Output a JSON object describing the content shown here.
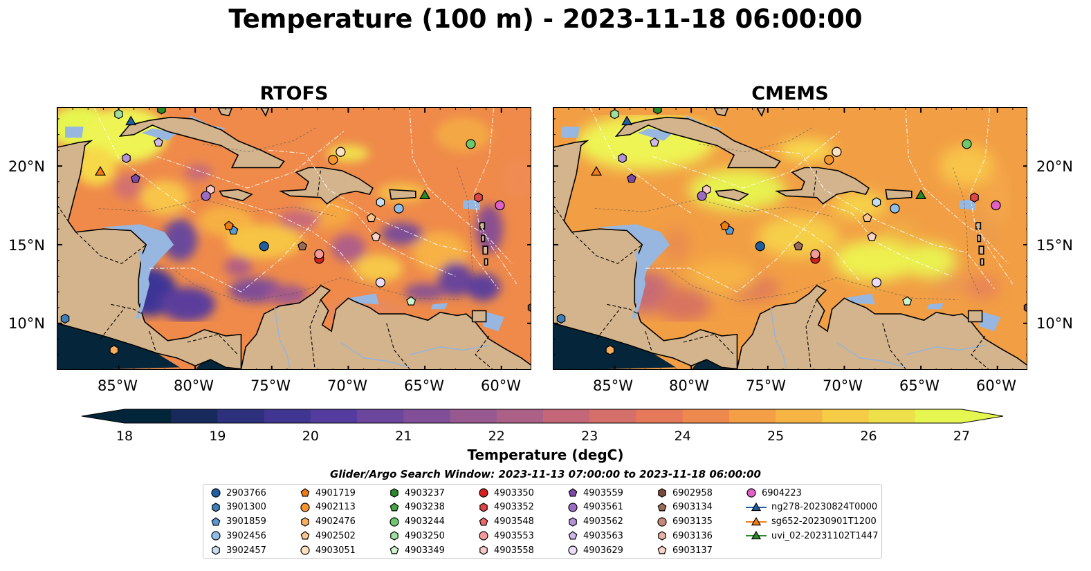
{
  "title": "Temperature (100 m) - 2023-11-18 06:00:00",
  "panels": [
    {
      "title": "RTOFS"
    },
    {
      "title": "CMEMS"
    }
  ],
  "lat_ticks": [
    "20°N",
    "15°N",
    "10°N"
  ],
  "lon_ticks": [
    "85°W",
    "80°W",
    "75°W",
    "70°W",
    "65°W",
    "60°W"
  ],
  "colorbar": {
    "label": "Temperature (degC)",
    "ticks": [
      "18",
      "19",
      "20",
      "21",
      "22",
      "23",
      "24",
      "25",
      "26",
      "27"
    ],
    "range": [
      18,
      27
    ],
    "colors": [
      "#03253a",
      "#2b2f7a",
      "#4f3aa0",
      "#7a4c9a",
      "#a45d8c",
      "#cc6a73",
      "#eb7c55",
      "#f5a343",
      "#f6cd45",
      "#e6f650"
    ]
  },
  "legend": {
    "title": "Glider/Argo Search Window: 2023-11-13 07:00:00 to 2023-11-18 06:00:00",
    "items": [
      {
        "label": "2903766",
        "marker": "circle",
        "color": "#1f5fa0"
      },
      {
        "label": "3901300",
        "marker": "hexagon",
        "color": "#3f7fb8"
      },
      {
        "label": "3901859",
        "marker": "pentagon",
        "color": "#5a9bd3"
      },
      {
        "label": "3902456",
        "marker": "circle",
        "color": "#8fbfe8"
      },
      {
        "label": "3902457",
        "marker": "hexagon",
        "color": "#c6def2"
      },
      {
        "label": "4901719",
        "marker": "pentagon",
        "color": "#f07d14"
      },
      {
        "label": "4902113",
        "marker": "circle",
        "color": "#f6952e"
      },
      {
        "label": "4902476",
        "marker": "hexagon",
        "color": "#f8ae5e"
      },
      {
        "label": "4902502",
        "marker": "pentagon",
        "color": "#fbc68e"
      },
      {
        "label": "4903051",
        "marker": "circle",
        "color": "#fde0be"
      },
      {
        "label": "4903237",
        "marker": "hexagon",
        "color": "#2a8a2a"
      },
      {
        "label": "4903238",
        "marker": "pentagon",
        "color": "#45a845"
      },
      {
        "label": "4903244",
        "marker": "circle",
        "color": "#6cc86c"
      },
      {
        "label": "4903250",
        "marker": "hexagon",
        "color": "#9ee09e"
      },
      {
        "label": "4903349",
        "marker": "pentagon",
        "color": "#cdf5cd"
      },
      {
        "label": "4903350",
        "marker": "circle",
        "color": "#d62020"
      },
      {
        "label": "4903352",
        "marker": "hexagon",
        "color": "#e04646"
      },
      {
        "label": "4903548",
        "marker": "pentagon",
        "color": "#ea6a6a"
      },
      {
        "label": "4903553",
        "marker": "circle",
        "color": "#f29a9a"
      },
      {
        "label": "4903558",
        "marker": "hexagon",
        "color": "#fac8c8"
      },
      {
        "label": "4903559",
        "marker": "pentagon",
        "color": "#7d4aa8"
      },
      {
        "label": "4903561",
        "marker": "circle",
        "color": "#9a6cc4"
      },
      {
        "label": "4903562",
        "marker": "hexagon",
        "color": "#b591d8"
      },
      {
        "label": "4903563",
        "marker": "pentagon",
        "color": "#d1b8ec"
      },
      {
        "label": "4903629",
        "marker": "circle",
        "color": "#eadcfa"
      },
      {
        "label": "6902958",
        "marker": "hexagon",
        "color": "#7a4a3a"
      },
      {
        "label": "6903134",
        "marker": "pentagon",
        "color": "#9a6a58"
      },
      {
        "label": "6903135",
        "marker": "circle",
        "color": "#c48a7a"
      },
      {
        "label": "6903136",
        "marker": "hexagon",
        "color": "#e6b0a2"
      },
      {
        "label": "6903137",
        "marker": "pentagon",
        "color": "#f8d4c8"
      },
      {
        "label": "6904223",
        "marker": "circle",
        "color": "#e060c8"
      },
      {
        "label": "ng278-20230824T0000",
        "marker": "triangle-line",
        "color": "#1f5fa0"
      },
      {
        "label": "sg652-20230901T1200",
        "marker": "triangle-line",
        "color": "#f07d14"
      },
      {
        "label": "uvi_02-20231102T1447",
        "marker": "triangle-line",
        "color": "#2a8a2a"
      }
    ]
  },
  "observations": [
    {
      "id": "2903766",
      "lon": -75.5,
      "lat": 14.9
    },
    {
      "id": "3901300",
      "lon": -88.5,
      "lat": 10.3
    },
    {
      "id": "3901859",
      "lon": -77.5,
      "lat": 15.9
    },
    {
      "id": "3902456",
      "lon": -66.7,
      "lat": 17.3
    },
    {
      "id": "3902457",
      "lon": -67.9,
      "lat": 17.7
    },
    {
      "id": "4901719",
      "lon": -77.8,
      "lat": 16.2
    },
    {
      "id": "4902113",
      "lon": -71.0,
      "lat": 20.4
    },
    {
      "id": "4902476",
      "lon": -85.3,
      "lat": 8.3
    },
    {
      "id": "4902502",
      "lon": -68.5,
      "lat": 16.7
    },
    {
      "id": "4903051",
      "lon": -70.5,
      "lat": 20.9
    },
    {
      "id": "4903244",
      "lon": -62.0,
      "lat": 21.4
    },
    {
      "id": "4903250",
      "lon": -85.0,
      "lat": 23.3
    },
    {
      "id": "4903349",
      "lon": -65.9,
      "lat": 11.4
    },
    {
      "id": "4903350",
      "lon": -71.9,
      "lat": 14.1
    },
    {
      "id": "4903352",
      "lon": -61.5,
      "lat": 18.0
    },
    {
      "id": "4903553",
      "lon": -71.9,
      "lat": 14.4
    },
    {
      "id": "4903558",
      "lon": -79.0,
      "lat": 18.5
    },
    {
      "id": "4903559",
      "lon": -83.9,
      "lat": 19.2
    },
    {
      "id": "4903561",
      "lon": -79.3,
      "lat": 18.1
    },
    {
      "id": "4903562",
      "lon": -84.5,
      "lat": 20.5
    },
    {
      "id": "4903563",
      "lon": -82.4,
      "lat": 21.5
    },
    {
      "id": "4903629",
      "lon": -67.9,
      "lat": 12.6
    },
    {
      "id": "6902958",
      "lon": -58.0,
      "lat": 11.0
    },
    {
      "id": "6903134",
      "lon": -73.0,
      "lat": 14.9
    },
    {
      "id": "6903137",
      "lon": -68.2,
      "lat": 15.5
    },
    {
      "id": "6904223",
      "lon": -60.1,
      "lat": 17.5
    },
    {
      "id": "4903237",
      "lon": -82.2,
      "lat": 23.6
    },
    {
      "id": "ng278-20230824T0000",
      "lon": -84.2,
      "lat": 22.8
    },
    {
      "id": "sg652-20230901T1200",
      "lon": -86.2,
      "lat": 19.6
    },
    {
      "id": "uvi_02-20231102T1447",
      "lon": -65.0,
      "lat": 18.1
    }
  ],
  "extent": {
    "lon": [
      -89,
      -58
    ],
    "lat": [
      7,
      23.7
    ]
  }
}
